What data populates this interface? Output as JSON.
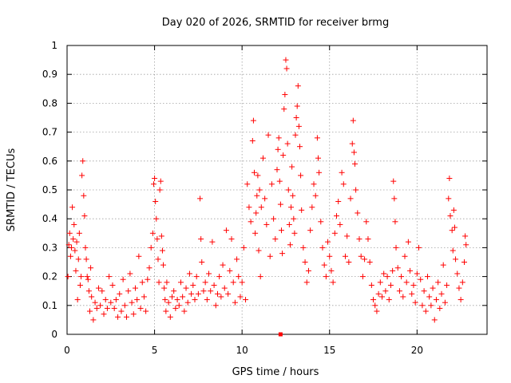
{
  "chart_data": {
    "type": "scatter",
    "title": "Day 020 of 2026, SRMTID for receiver brmg",
    "xlabel": "GPS time / hours",
    "ylabel": "SRMTID / TECUs",
    "xlim": [
      0,
      24
    ],
    "ylim": [
      0,
      1
    ],
    "xticks": [
      0,
      5,
      10,
      15,
      20
    ],
    "xtick_labels": [
      "0",
      "5",
      "10",
      "15",
      "20"
    ],
    "yticks": [
      0,
      0.1,
      0.2,
      0.3,
      0.4,
      0.5,
      0.6,
      0.7,
      0.8,
      0.9,
      1
    ],
    "ytick_labels": [
      "0",
      "0.1",
      "0.2",
      "0.3",
      "0.4",
      "0.5",
      "0.6",
      "0.7",
      "0.8",
      "0.9",
      "1"
    ],
    "grid": true,
    "marker": "+",
    "color": "#ff0000",
    "series": [
      {
        "name": "SRMTID",
        "points": [
          [
            0.05,
            0.2
          ],
          [
            0.1,
            0.31
          ],
          [
            0.15,
            0.35
          ],
          [
            0.2,
            0.27
          ],
          [
            0.25,
            0.3
          ],
          [
            0.3,
            0.44
          ],
          [
            0.35,
            0.33
          ],
          [
            0.4,
            0.38
          ],
          [
            0.45,
            0.29
          ],
          [
            0.5,
            0.22
          ],
          [
            0.55,
            0.32
          ],
          [
            0.6,
            0.12
          ],
          [
            0.65,
            0.26
          ],
          [
            0.7,
            0.35
          ],
          [
            0.75,
            0.17
          ],
          [
            0.8,
            0.2
          ],
          [
            0.85,
            0.55
          ],
          [
            0.9,
            0.6
          ],
          [
            0.95,
            0.48
          ],
          [
            1.0,
            0.41
          ],
          [
            1.05,
            0.3
          ],
          [
            1.1,
            0.26
          ],
          [
            1.15,
            0.2
          ],
          [
            1.2,
            0.19
          ],
          [
            1.25,
            0.15
          ],
          [
            1.3,
            0.08
          ],
          [
            1.35,
            0.23
          ],
          [
            1.4,
            0.13
          ],
          [
            1.5,
            0.05
          ],
          [
            1.6,
            0.11
          ],
          [
            1.7,
            0.09
          ],
          [
            1.8,
            0.16
          ],
          [
            1.9,
            0.1
          ],
          [
            2.0,
            0.15
          ],
          [
            2.1,
            0.07
          ],
          [
            2.2,
            0.12
          ],
          [
            2.3,
            0.09
          ],
          [
            2.4,
            0.2
          ],
          [
            2.5,
            0.11
          ],
          [
            2.6,
            0.17
          ],
          [
            2.7,
            0.09
          ],
          [
            2.8,
            0.12
          ],
          [
            2.9,
            0.06
          ],
          [
            3.0,
            0.14
          ],
          [
            3.1,
            0.08
          ],
          [
            3.2,
            0.19
          ],
          [
            3.3,
            0.1
          ],
          [
            3.4,
            0.06
          ],
          [
            3.5,
            0.15
          ],
          [
            3.6,
            0.21
          ],
          [
            3.7,
            0.11
          ],
          [
            3.8,
            0.07
          ],
          [
            3.9,
            0.16
          ],
          [
            4.0,
            0.12
          ],
          [
            4.1,
            0.27
          ],
          [
            4.2,
            0.09
          ],
          [
            4.3,
            0.18
          ],
          [
            4.4,
            0.13
          ],
          [
            4.5,
            0.08
          ],
          [
            4.6,
            0.19
          ],
          [
            4.7,
            0.23
          ],
          [
            4.8,
            0.3
          ],
          [
            4.9,
            0.35
          ],
          [
            4.95,
            0.52
          ],
          [
            5.0,
            0.54
          ],
          [
            5.05,
            0.46
          ],
          [
            5.1,
            0.4
          ],
          [
            5.15,
            0.33
          ],
          [
            5.2,
            0.26
          ],
          [
            5.25,
            0.18
          ],
          [
            5.3,
            0.5
          ],
          [
            5.35,
            0.53
          ],
          [
            5.4,
            0.34
          ],
          [
            5.45,
            0.29
          ],
          [
            5.5,
            0.24
          ],
          [
            5.55,
            0.16
          ],
          [
            5.6,
            0.12
          ],
          [
            5.65,
            0.08
          ],
          [
            5.7,
            0.18
          ],
          [
            5.8,
            0.11
          ],
          [
            5.9,
            0.06
          ],
          [
            6.0,
            0.13
          ],
          [
            6.1,
            0.15
          ],
          [
            6.2,
            0.09
          ],
          [
            6.3,
            0.12
          ],
          [
            6.4,
            0.1
          ],
          [
            6.5,
            0.18
          ],
          [
            6.6,
            0.13
          ],
          [
            6.7,
            0.08
          ],
          [
            6.8,
            0.16
          ],
          [
            6.9,
            0.11
          ],
          [
            7.0,
            0.21
          ],
          [
            7.1,
            0.14
          ],
          [
            7.2,
            0.17
          ],
          [
            7.3,
            0.12
          ],
          [
            7.4,
            0.2
          ],
          [
            7.5,
            0.14
          ],
          [
            7.6,
            0.47
          ],
          [
            7.65,
            0.33
          ],
          [
            7.7,
            0.25
          ],
          [
            7.8,
            0.15
          ],
          [
            7.9,
            0.18
          ],
          [
            8.0,
            0.12
          ],
          [
            8.1,
            0.21
          ],
          [
            8.2,
            0.15
          ],
          [
            8.3,
            0.32
          ],
          [
            8.4,
            0.17
          ],
          [
            8.5,
            0.1
          ],
          [
            8.6,
            0.14
          ],
          [
            8.7,
            0.2
          ],
          [
            8.8,
            0.13
          ],
          [
            8.9,
            0.24
          ],
          [
            9.0,
            0.16
          ],
          [
            9.1,
            0.36
          ],
          [
            9.2,
            0.14
          ],
          [
            9.3,
            0.22
          ],
          [
            9.4,
            0.33
          ],
          [
            9.5,
            0.18
          ],
          [
            9.6,
            0.11
          ],
          [
            9.7,
            0.26
          ],
          [
            9.8,
            0.2
          ],
          [
            9.9,
            0.13
          ],
          [
            10.0,
            0.18
          ],
          [
            10.1,
            0.3
          ],
          [
            10.2,
            0.12
          ],
          [
            10.3,
            0.52
          ],
          [
            10.4,
            0.44
          ],
          [
            10.5,
            0.39
          ],
          [
            10.6,
            0.67
          ],
          [
            10.65,
            0.74
          ],
          [
            10.7,
            0.56
          ],
          [
            10.75,
            0.35
          ],
          [
            10.8,
            0.42
          ],
          [
            10.85,
            0.48
          ],
          [
            10.9,
            0.55
          ],
          [
            10.95,
            0.29
          ],
          [
            11.0,
            0.5
          ],
          [
            11.05,
            0.2
          ],
          [
            11.1,
            0.44
          ],
          [
            11.2,
            0.61
          ],
          [
            11.3,
            0.47
          ],
          [
            11.4,
            0.38
          ],
          [
            11.5,
            0.69
          ],
          [
            11.6,
            0.27
          ],
          [
            11.7,
            0.52
          ],
          [
            11.8,
            0.4
          ],
          [
            11.9,
            0.33
          ],
          [
            12.0,
            0.57
          ],
          [
            12.05,
            0.64
          ],
          [
            12.1,
            0.68
          ],
          [
            12.15,
            0.53
          ],
          [
            12.2,
            0.45
          ],
          [
            12.25,
            0.36
          ],
          [
            12.3,
            0.28
          ],
          [
            12.35,
            0.62
          ],
          [
            12.4,
            0.78
          ],
          [
            12.45,
            0.83
          ],
          [
            12.5,
            0.95
          ],
          [
            12.55,
            0.92
          ],
          [
            12.6,
            0.66
          ],
          [
            12.65,
            0.5
          ],
          [
            12.7,
            0.38
          ],
          [
            12.75,
            0.31
          ],
          [
            12.8,
            0.44
          ],
          [
            12.85,
            0.58
          ],
          [
            12.9,
            0.48
          ],
          [
            12.95,
            0.4
          ],
          [
            13.0,
            0.35
          ],
          [
            13.05,
            0.69
          ],
          [
            13.1,
            0.75
          ],
          [
            13.15,
            0.79
          ],
          [
            13.2,
            0.86
          ],
          [
            13.25,
            0.72
          ],
          [
            13.3,
            0.65
          ],
          [
            13.35,
            0.55
          ],
          [
            13.4,
            0.43
          ],
          [
            13.5,
            0.3
          ],
          [
            13.6,
            0.25
          ],
          [
            13.7,
            0.18
          ],
          [
            13.8,
            0.22
          ],
          [
            13.9,
            0.36
          ],
          [
            14.0,
            0.44
          ],
          [
            14.1,
            0.52
          ],
          [
            14.2,
            0.48
          ],
          [
            14.3,
            0.68
          ],
          [
            14.35,
            0.61
          ],
          [
            14.4,
            0.56
          ],
          [
            14.5,
            0.39
          ],
          [
            14.6,
            0.3
          ],
          [
            14.7,
            0.24
          ],
          [
            14.8,
            0.2
          ],
          [
            14.9,
            0.32
          ],
          [
            15.0,
            0.27
          ],
          [
            15.1,
            0.22
          ],
          [
            15.2,
            0.18
          ],
          [
            15.3,
            0.35
          ],
          [
            15.4,
            0.41
          ],
          [
            15.5,
            0.46
          ],
          [
            15.6,
            0.38
          ],
          [
            15.7,
            0.56
          ],
          [
            15.8,
            0.52
          ],
          [
            15.9,
            0.27
          ],
          [
            16.0,
            0.34
          ],
          [
            16.1,
            0.25
          ],
          [
            16.2,
            0.47
          ],
          [
            16.3,
            0.66
          ],
          [
            16.35,
            0.74
          ],
          [
            16.4,
            0.63
          ],
          [
            16.45,
            0.59
          ],
          [
            16.5,
            0.5
          ],
          [
            16.6,
            0.42
          ],
          [
            16.7,
            0.33
          ],
          [
            16.8,
            0.27
          ],
          [
            16.9,
            0.2
          ],
          [
            17.0,
            0.26
          ],
          [
            17.1,
            0.39
          ],
          [
            17.2,
            0.33
          ],
          [
            17.3,
            0.25
          ],
          [
            17.4,
            0.17
          ],
          [
            17.5,
            0.12
          ],
          [
            17.6,
            0.1
          ],
          [
            17.7,
            0.08
          ],
          [
            17.8,
            0.14
          ],
          [
            17.9,
            0.18
          ],
          [
            18.0,
            0.13
          ],
          [
            18.1,
            0.21
          ],
          [
            18.2,
            0.15
          ],
          [
            18.3,
            0.2
          ],
          [
            18.4,
            0.12
          ],
          [
            18.5,
            0.17
          ],
          [
            18.6,
            0.22
          ],
          [
            18.65,
            0.53
          ],
          [
            18.7,
            0.47
          ],
          [
            18.75,
            0.39
          ],
          [
            18.8,
            0.3
          ],
          [
            18.9,
            0.23
          ],
          [
            19.0,
            0.15
          ],
          [
            19.1,
            0.2
          ],
          [
            19.2,
            0.13
          ],
          [
            19.3,
            0.27
          ],
          [
            19.4,
            0.18
          ],
          [
            19.5,
            0.32
          ],
          [
            19.6,
            0.22
          ],
          [
            19.7,
            0.14
          ],
          [
            19.8,
            0.17
          ],
          [
            19.9,
            0.11
          ],
          [
            20.0,
            0.21
          ],
          [
            20.1,
            0.3
          ],
          [
            20.2,
            0.19
          ],
          [
            20.3,
            0.1
          ],
          [
            20.4,
            0.15
          ],
          [
            20.5,
            0.08
          ],
          [
            20.6,
            0.2
          ],
          [
            20.7,
            0.13
          ],
          [
            20.8,
            0.1
          ],
          [
            20.9,
            0.16
          ],
          [
            21.0,
            0.05
          ],
          [
            21.1,
            0.12
          ],
          [
            21.2,
            0.18
          ],
          [
            21.3,
            0.09
          ],
          [
            21.4,
            0.14
          ],
          [
            21.5,
            0.24
          ],
          [
            21.6,
            0.11
          ],
          [
            21.7,
            0.17
          ],
          [
            21.8,
            0.47
          ],
          [
            21.85,
            0.54
          ],
          [
            21.9,
            0.41
          ],
          [
            22.0,
            0.36
          ],
          [
            22.05,
            0.29
          ],
          [
            22.1,
            0.43
          ],
          [
            22.15,
            0.37
          ],
          [
            22.2,
            0.26
          ],
          [
            22.3,
            0.21
          ],
          [
            22.4,
            0.16
          ],
          [
            22.5,
            0.12
          ],
          [
            22.6,
            0.18
          ],
          [
            22.7,
            0.25
          ],
          [
            22.75,
            0.34
          ],
          [
            22.8,
            0.31
          ]
        ]
      }
    ],
    "outlier_squares": [
      [
        12.2,
        0.0
      ]
    ]
  }
}
